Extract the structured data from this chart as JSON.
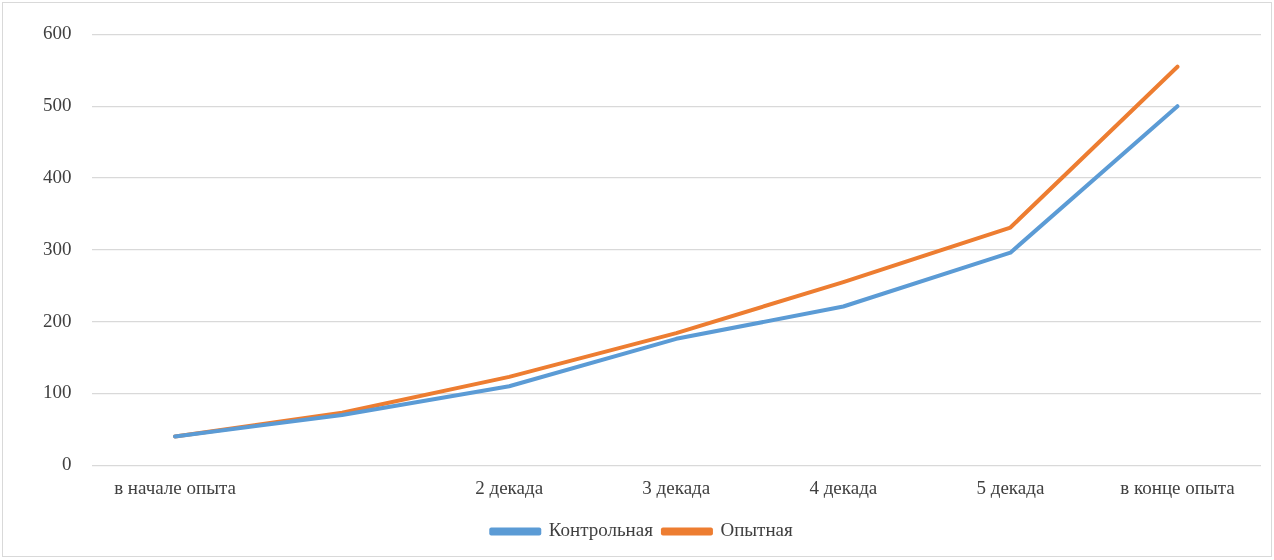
{
  "chart_data": {
    "type": "line",
    "categories": [
      "в начале опыта",
      null,
      "2 декада",
      "3 декада",
      "4 декада",
      "5 декада",
      "в конце опыта"
    ],
    "series": [
      {
        "name": "Контрольная",
        "color": "#5b9bd5",
        "values": [
          40,
          70,
          110,
          176,
          221,
          296,
          500
        ]
      },
      {
        "name": "Опытная",
        "color": "#ed7d31",
        "values": [
          40,
          73,
          123,
          184,
          255,
          331,
          555
        ]
      }
    ],
    "ylim": [
      0,
      600
    ],
    "yticks": [
      0,
      100,
      200,
      300,
      400,
      500,
      600
    ],
    "grid": "y",
    "legend": "bottom",
    "marker": "none",
    "line_style": "solid"
  }
}
